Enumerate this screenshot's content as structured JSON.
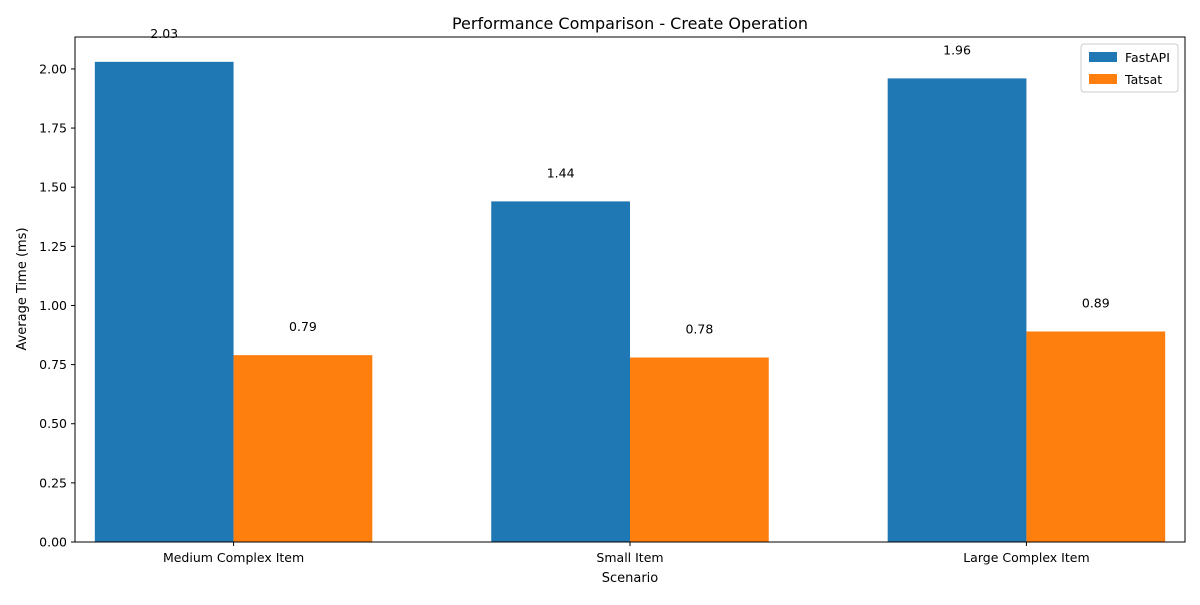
{
  "chart_data": {
    "type": "bar",
    "title": "Performance Comparison - Create Operation",
    "xlabel": "Scenario",
    "ylabel": "Average Time (ms)",
    "categories": [
      "Medium Complex Item",
      "Small Item",
      "Large Complex Item"
    ],
    "series": [
      {
        "name": "FastAPI",
        "color": "#1f77b4",
        "values": [
          2.03,
          1.44,
          1.96
        ],
        "labels": [
          "2.03",
          "1.44",
          "1.96"
        ]
      },
      {
        "name": "Tatsat",
        "color": "#ff7f0e",
        "values": [
          0.79,
          0.78,
          0.89
        ],
        "labels": [
          "0.79",
          "0.78",
          "0.89"
        ]
      }
    ],
    "ylim": [
      0,
      2.135
    ],
    "yticks": [
      0.0,
      0.25,
      0.5,
      0.75,
      1.0,
      1.25,
      1.5,
      1.75,
      2.0
    ],
    "ytick_labels": [
      "0.00",
      "0.25",
      "0.50",
      "0.75",
      "1.00",
      "1.25",
      "1.50",
      "1.75",
      "2.00"
    ],
    "legend_position": "top-right",
    "grid": false
  }
}
